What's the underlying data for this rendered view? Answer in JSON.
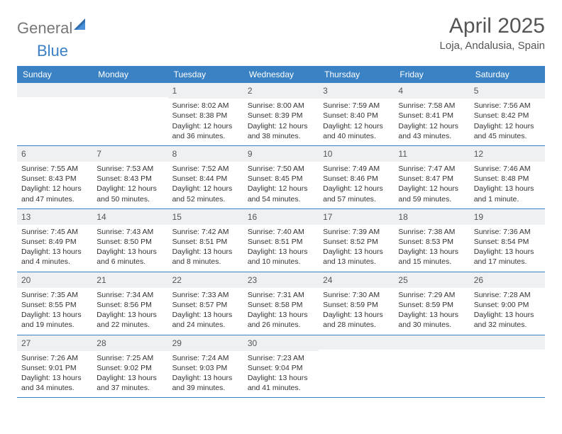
{
  "logo": {
    "text1": "General",
    "text2": "Blue"
  },
  "title": "April 2025",
  "location": "Loja, Andalusia, Spain",
  "weekdays": [
    "Sunday",
    "Monday",
    "Tuesday",
    "Wednesday",
    "Thursday",
    "Friday",
    "Saturday"
  ],
  "colors": {
    "header_bg": "#3b82c4",
    "header_text": "#ffffff",
    "daynum_bg": "#eef0f2",
    "week_border": "#3b7fc4",
    "text": "#333333",
    "title_text": "#555555"
  },
  "weeks": [
    [
      {
        "n": "",
        "sr": "",
        "ss": "",
        "dl1": "",
        "dl2": ""
      },
      {
        "n": "",
        "sr": "",
        "ss": "",
        "dl1": "",
        "dl2": ""
      },
      {
        "n": "1",
        "sr": "Sunrise: 8:02 AM",
        "ss": "Sunset: 8:38 PM",
        "dl1": "Daylight: 12 hours",
        "dl2": "and 36 minutes."
      },
      {
        "n": "2",
        "sr": "Sunrise: 8:00 AM",
        "ss": "Sunset: 8:39 PM",
        "dl1": "Daylight: 12 hours",
        "dl2": "and 38 minutes."
      },
      {
        "n": "3",
        "sr": "Sunrise: 7:59 AM",
        "ss": "Sunset: 8:40 PM",
        "dl1": "Daylight: 12 hours",
        "dl2": "and 40 minutes."
      },
      {
        "n": "4",
        "sr": "Sunrise: 7:58 AM",
        "ss": "Sunset: 8:41 PM",
        "dl1": "Daylight: 12 hours",
        "dl2": "and 43 minutes."
      },
      {
        "n": "5",
        "sr": "Sunrise: 7:56 AM",
        "ss": "Sunset: 8:42 PM",
        "dl1": "Daylight: 12 hours",
        "dl2": "and 45 minutes."
      }
    ],
    [
      {
        "n": "6",
        "sr": "Sunrise: 7:55 AM",
        "ss": "Sunset: 8:43 PM",
        "dl1": "Daylight: 12 hours",
        "dl2": "and 47 minutes."
      },
      {
        "n": "7",
        "sr": "Sunrise: 7:53 AM",
        "ss": "Sunset: 8:43 PM",
        "dl1": "Daylight: 12 hours",
        "dl2": "and 50 minutes."
      },
      {
        "n": "8",
        "sr": "Sunrise: 7:52 AM",
        "ss": "Sunset: 8:44 PM",
        "dl1": "Daylight: 12 hours",
        "dl2": "and 52 minutes."
      },
      {
        "n": "9",
        "sr": "Sunrise: 7:50 AM",
        "ss": "Sunset: 8:45 PM",
        "dl1": "Daylight: 12 hours",
        "dl2": "and 54 minutes."
      },
      {
        "n": "10",
        "sr": "Sunrise: 7:49 AM",
        "ss": "Sunset: 8:46 PM",
        "dl1": "Daylight: 12 hours",
        "dl2": "and 57 minutes."
      },
      {
        "n": "11",
        "sr": "Sunrise: 7:47 AM",
        "ss": "Sunset: 8:47 PM",
        "dl1": "Daylight: 12 hours",
        "dl2": "and 59 minutes."
      },
      {
        "n": "12",
        "sr": "Sunrise: 7:46 AM",
        "ss": "Sunset: 8:48 PM",
        "dl1": "Daylight: 13 hours",
        "dl2": "and 1 minute."
      }
    ],
    [
      {
        "n": "13",
        "sr": "Sunrise: 7:45 AM",
        "ss": "Sunset: 8:49 PM",
        "dl1": "Daylight: 13 hours",
        "dl2": "and 4 minutes."
      },
      {
        "n": "14",
        "sr": "Sunrise: 7:43 AM",
        "ss": "Sunset: 8:50 PM",
        "dl1": "Daylight: 13 hours",
        "dl2": "and 6 minutes."
      },
      {
        "n": "15",
        "sr": "Sunrise: 7:42 AM",
        "ss": "Sunset: 8:51 PM",
        "dl1": "Daylight: 13 hours",
        "dl2": "and 8 minutes."
      },
      {
        "n": "16",
        "sr": "Sunrise: 7:40 AM",
        "ss": "Sunset: 8:51 PM",
        "dl1": "Daylight: 13 hours",
        "dl2": "and 10 minutes."
      },
      {
        "n": "17",
        "sr": "Sunrise: 7:39 AM",
        "ss": "Sunset: 8:52 PM",
        "dl1": "Daylight: 13 hours",
        "dl2": "and 13 minutes."
      },
      {
        "n": "18",
        "sr": "Sunrise: 7:38 AM",
        "ss": "Sunset: 8:53 PM",
        "dl1": "Daylight: 13 hours",
        "dl2": "and 15 minutes."
      },
      {
        "n": "19",
        "sr": "Sunrise: 7:36 AM",
        "ss": "Sunset: 8:54 PM",
        "dl1": "Daylight: 13 hours",
        "dl2": "and 17 minutes."
      }
    ],
    [
      {
        "n": "20",
        "sr": "Sunrise: 7:35 AM",
        "ss": "Sunset: 8:55 PM",
        "dl1": "Daylight: 13 hours",
        "dl2": "and 19 minutes."
      },
      {
        "n": "21",
        "sr": "Sunrise: 7:34 AM",
        "ss": "Sunset: 8:56 PM",
        "dl1": "Daylight: 13 hours",
        "dl2": "and 22 minutes."
      },
      {
        "n": "22",
        "sr": "Sunrise: 7:33 AM",
        "ss": "Sunset: 8:57 PM",
        "dl1": "Daylight: 13 hours",
        "dl2": "and 24 minutes."
      },
      {
        "n": "23",
        "sr": "Sunrise: 7:31 AM",
        "ss": "Sunset: 8:58 PM",
        "dl1": "Daylight: 13 hours",
        "dl2": "and 26 minutes."
      },
      {
        "n": "24",
        "sr": "Sunrise: 7:30 AM",
        "ss": "Sunset: 8:59 PM",
        "dl1": "Daylight: 13 hours",
        "dl2": "and 28 minutes."
      },
      {
        "n": "25",
        "sr": "Sunrise: 7:29 AM",
        "ss": "Sunset: 8:59 PM",
        "dl1": "Daylight: 13 hours",
        "dl2": "and 30 minutes."
      },
      {
        "n": "26",
        "sr": "Sunrise: 7:28 AM",
        "ss": "Sunset: 9:00 PM",
        "dl1": "Daylight: 13 hours",
        "dl2": "and 32 minutes."
      }
    ],
    [
      {
        "n": "27",
        "sr": "Sunrise: 7:26 AM",
        "ss": "Sunset: 9:01 PM",
        "dl1": "Daylight: 13 hours",
        "dl2": "and 34 minutes."
      },
      {
        "n": "28",
        "sr": "Sunrise: 7:25 AM",
        "ss": "Sunset: 9:02 PM",
        "dl1": "Daylight: 13 hours",
        "dl2": "and 37 minutes."
      },
      {
        "n": "29",
        "sr": "Sunrise: 7:24 AM",
        "ss": "Sunset: 9:03 PM",
        "dl1": "Daylight: 13 hours",
        "dl2": "and 39 minutes."
      },
      {
        "n": "30",
        "sr": "Sunrise: 7:23 AM",
        "ss": "Sunset: 9:04 PM",
        "dl1": "Daylight: 13 hours",
        "dl2": "and 41 minutes."
      },
      {
        "n": "",
        "sr": "",
        "ss": "",
        "dl1": "",
        "dl2": ""
      },
      {
        "n": "",
        "sr": "",
        "ss": "",
        "dl1": "",
        "dl2": ""
      },
      {
        "n": "",
        "sr": "",
        "ss": "",
        "dl1": "",
        "dl2": ""
      }
    ]
  ]
}
